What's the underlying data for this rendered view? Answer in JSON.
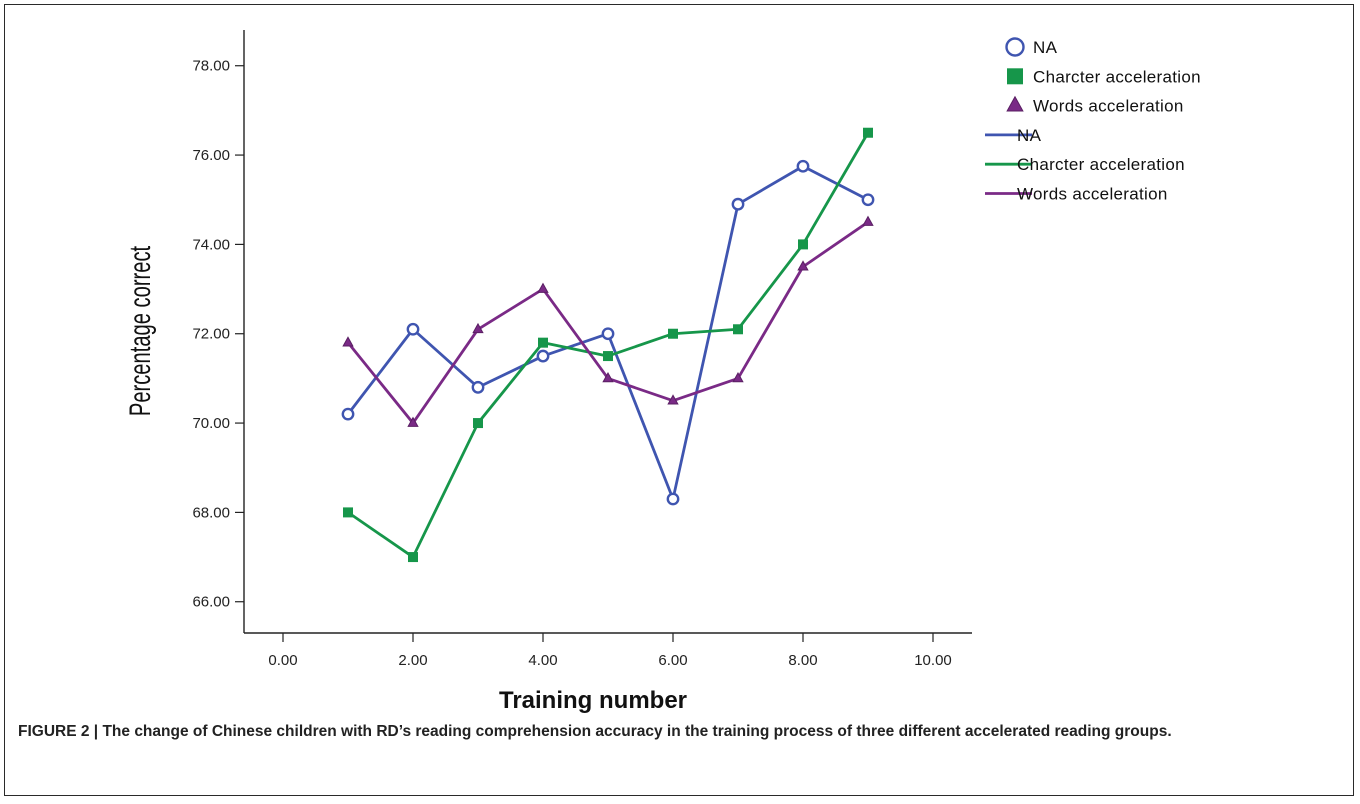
{
  "chart_data": {
    "type": "line",
    "xlabel": "Training number",
    "ylabel": "Percentage correct",
    "xlim": [
      -0.6,
      10.6
    ],
    "ylim": [
      65.3,
      78.8
    ],
    "xticks": [
      "0.00",
      "2.00",
      "4.00",
      "6.00",
      "8.00",
      "10.00"
    ],
    "xtick_values": [
      0,
      2,
      4,
      6,
      8,
      10
    ],
    "yticks": [
      "66.00",
      "68.00",
      "70.00",
      "72.00",
      "74.00",
      "76.00",
      "78.00"
    ],
    "ytick_values": [
      66,
      68,
      70,
      72,
      74,
      76,
      78
    ],
    "x": [
      1,
      2,
      3,
      4,
      5,
      6,
      7,
      8,
      9
    ],
    "grid": false,
    "legend_position": "top-right",
    "series": [
      {
        "name": "NA",
        "marker": "circle",
        "color": "#3f55b0",
        "values": [
          70.2,
          72.1,
          70.8,
          71.5,
          72.0,
          68.3,
          74.9,
          75.75,
          75.0
        ]
      },
      {
        "name": "Charcter acceleration",
        "marker": "square",
        "color": "#16964a",
        "values": [
          68.0,
          67.0,
          70.0,
          71.8,
          71.5,
          72.0,
          72.1,
          74.0,
          76.5
        ]
      },
      {
        "name": "Words acceleration",
        "marker": "triangle",
        "color": "#7a2a86",
        "values": [
          71.8,
          70.0,
          72.1,
          73.0,
          71.0,
          70.5,
          71.0,
          73.5,
          74.5
        ]
      }
    ],
    "legend_entries": [
      {
        "label": "NA",
        "kind": "marker",
        "series": 0
      },
      {
        "label": "Charcter acceleration",
        "kind": "marker",
        "series": 1
      },
      {
        "label": "Words acceleration",
        "kind": "marker",
        "series": 2
      },
      {
        "label": "NA",
        "kind": "line",
        "series": 0
      },
      {
        "label": "Charcter acceleration",
        "kind": "line",
        "series": 1
      },
      {
        "label": "Words acceleration",
        "kind": "line",
        "series": 2
      }
    ]
  },
  "caption": {
    "label": "FIGURE 2 |",
    "text": "The change of Chinese children with RD’s reading comprehension accuracy in the training process of three different accelerated reading groups."
  }
}
